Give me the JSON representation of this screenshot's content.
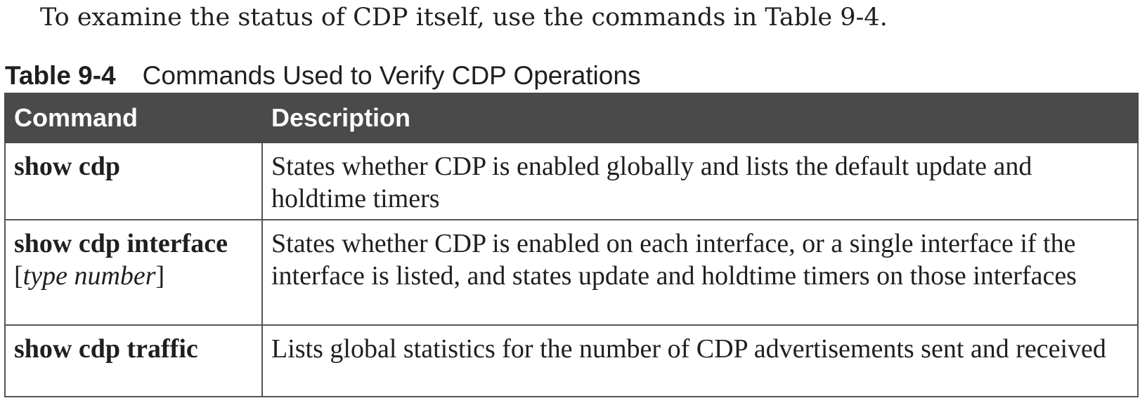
{
  "intro_text": "To examine the status of CDP itself, use the commands in Table 9-4.",
  "caption": {
    "number": "Table 9-4",
    "title": "Commands Used to Verify CDP Operations"
  },
  "table": {
    "headers": [
      "Command",
      "Description"
    ],
    "rows": [
      {
        "command": "show cdp",
        "argument": "",
        "description": "States whether CDP is enabled globally and lists the default update and holdtime timers"
      },
      {
        "command": "show cdp interface",
        "argument": "type number",
        "description": "States whether CDP is enabled on each interface, or a single interface if the interface is listed, and states update and holdtime timers on those interfaces"
      },
      {
        "command": "show cdp traffic",
        "argument": "",
        "description": "Lists global statistics for the number of CDP advertisements sent and received"
      }
    ]
  }
}
